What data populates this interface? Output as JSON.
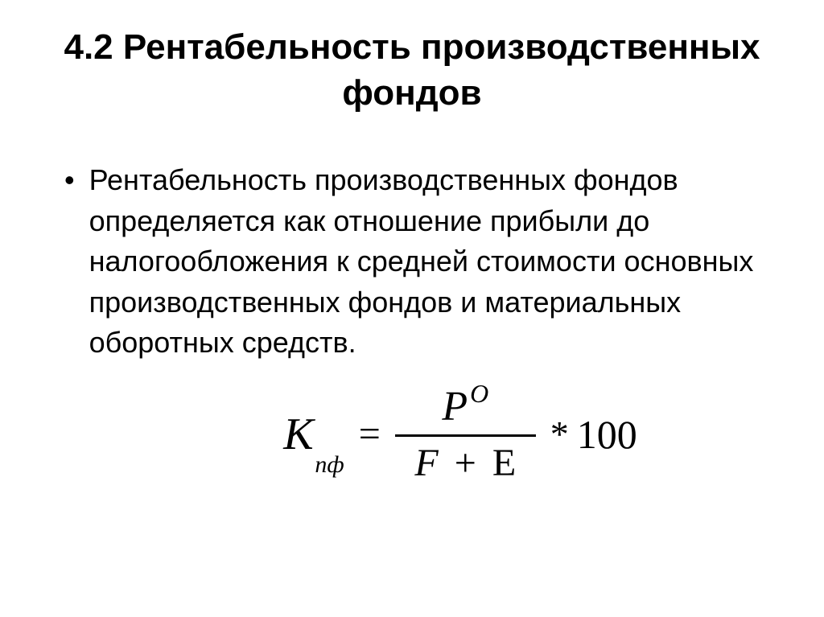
{
  "title": "4.2 Рентабельность производственных фондов",
  "bullet_char": "•",
  "paragraph": "Рентабельность производственных фондов определяется как отношение прибыли до налогообложения к средней стоимости основных производственных фондов и материальных оборотных средств.",
  "formula": {
    "lhs_var": "К",
    "lhs_sub": "пф",
    "equals": "=",
    "num_var": "P",
    "num_sup": "O",
    "denom_left": "F",
    "denom_plus": "+",
    "denom_right": "E",
    "multiply": "*",
    "constant": "100"
  },
  "styling": {
    "background_color": "#ffffff",
    "text_color": "#000000",
    "title_fontsize": 44,
    "title_weight": "bold",
    "body_fontsize": 36,
    "formula_fontsize": 52,
    "formula_font": "Times New Roman",
    "body_font": "Arial"
  }
}
